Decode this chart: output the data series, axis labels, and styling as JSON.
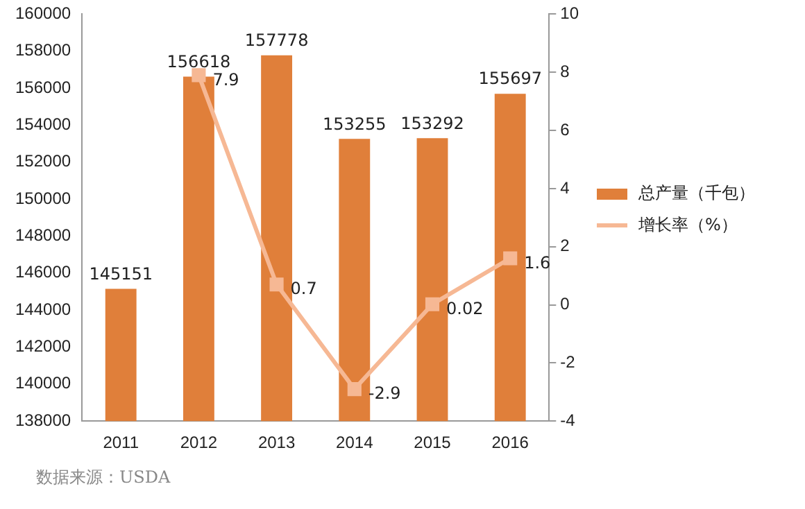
{
  "chart_data": {
    "type": "bar",
    "categories": [
      "2011",
      "2012",
      "2013",
      "2014",
      "2015",
      "2016"
    ],
    "series": [
      {
        "name": "总产量（千包）",
        "color": "#e07f3a",
        "values": [
          145151,
          156618,
          157778,
          153255,
          153292,
          155697
        ]
      },
      {
        "name": "增长率（%）",
        "type": "line",
        "axis": "y2",
        "color": "#f6b894",
        "values": [
          null,
          7.9,
          0.7,
          -2.9,
          0.02,
          1.6
        ]
      }
    ],
    "ylim": [
      138000,
      160000
    ],
    "yticks": [
      138000,
      140000,
      142000,
      144000,
      146000,
      148000,
      150000,
      152000,
      154000,
      156000,
      158000,
      160000
    ],
    "y2lim": [
      -4,
      10
    ],
    "y2ticks": [
      -4,
      -2,
      0,
      2,
      4,
      6,
      8,
      10
    ],
    "marker": "square",
    "grid": false,
    "legend": "right",
    "data_labels": true,
    "annotations": [
      "数据来源：USDA"
    ]
  }
}
